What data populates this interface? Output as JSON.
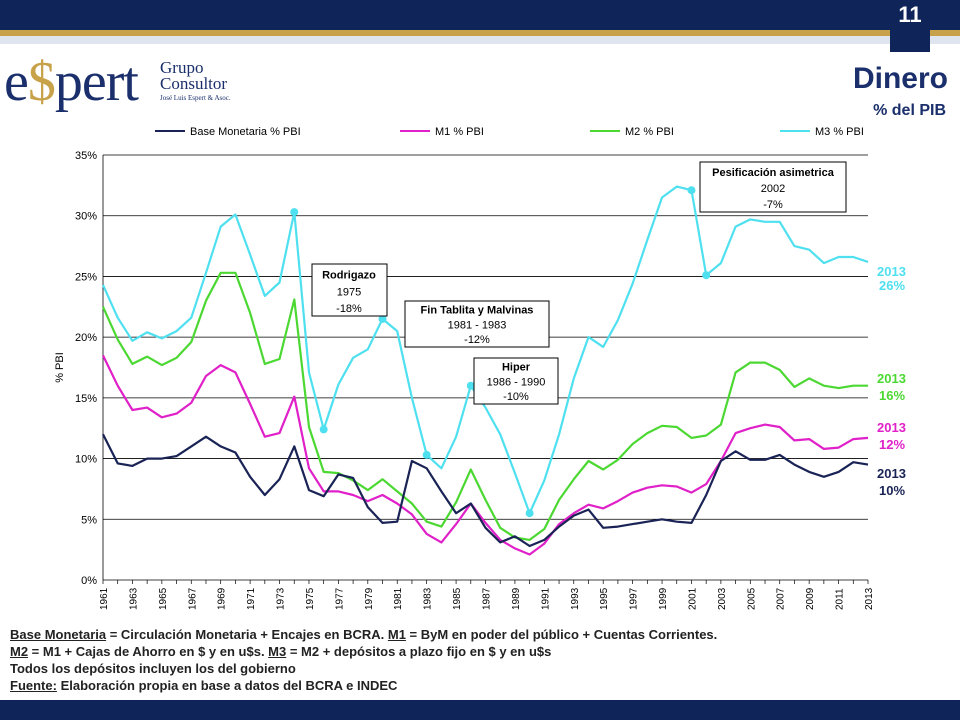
{
  "header": {
    "page_number": "11",
    "title": "Dinero",
    "subtitle": "% del PIB"
  },
  "logo": {
    "name": "espert",
    "grupo": "Grupo",
    "consultor": "Consultor",
    "tagline": "José Luis Espert & Asoc."
  },
  "colors": {
    "base": "#1a2355",
    "m1": "#e020c8",
    "m2": "#4cd832",
    "m3": "#4fe0f0",
    "navy": "#0f2458",
    "gold": "#c8a24a"
  },
  "chart_data": {
    "type": "line",
    "ylabel": "% PBI",
    "ylim": [
      0,
      35
    ],
    "yticks": [
      "0%",
      "5%",
      "10%",
      "15%",
      "20%",
      "25%",
      "30%",
      "35%"
    ],
    "x": [
      1961,
      1962,
      1963,
      1964,
      1965,
      1966,
      1967,
      1968,
      1969,
      1970,
      1971,
      1972,
      1973,
      1974,
      1975,
      1976,
      1977,
      1978,
      1979,
      1980,
      1981,
      1982,
      1983,
      1984,
      1985,
      1986,
      1987,
      1988,
      1989,
      1990,
      1991,
      1992,
      1993,
      1994,
      1995,
      1996,
      1997,
      1998,
      1999,
      2000,
      2001,
      2002,
      2003,
      2004,
      2005,
      2006,
      2007,
      2008,
      2009,
      2010,
      2011,
      2012,
      2013
    ],
    "xticks": [
      "1961",
      "1963",
      "1965",
      "1967",
      "1969",
      "1971",
      "1973",
      "1975",
      "1977",
      "1979",
      "1981",
      "1983",
      "1985",
      "1987",
      "1989",
      "1991",
      "1993",
      "1995",
      "1997",
      "1999",
      "2001",
      "2003",
      "2005",
      "2007",
      "2009",
      "2011",
      "2013"
    ],
    "series": [
      {
        "key": "base",
        "name": "Base Monetaria % PBI",
        "end_year": "2013",
        "end_value": "10%",
        "values": [
          12.0,
          9.6,
          9.4,
          10.0,
          10.0,
          10.2,
          11.0,
          11.8,
          11.0,
          10.5,
          8.5,
          7.0,
          8.3,
          11.0,
          7.4,
          6.9,
          8.7,
          8.4,
          6.0,
          4.7,
          4.8,
          9.8,
          9.2,
          7.3,
          5.5,
          6.3,
          4.3,
          3.1,
          3.6,
          2.8,
          3.3,
          4.4,
          5.3,
          5.8,
          4.3,
          4.4,
          4.6,
          4.8,
          5.0,
          4.8,
          4.7,
          7.0,
          9.8,
          10.6,
          9.9,
          9.9,
          10.3,
          9.5,
          8.9,
          8.5,
          8.9,
          9.7,
          9.5
        ]
      },
      {
        "key": "m1",
        "name": "M1 % PBI",
        "end_year": "2013",
        "end_value": "12%",
        "values": [
          18.5,
          16.0,
          14.0,
          14.2,
          13.4,
          13.7,
          14.6,
          16.8,
          17.7,
          17.1,
          14.5,
          11.8,
          12.1,
          15.1,
          9.2,
          7.3,
          7.3,
          7.0,
          6.5,
          7.0,
          6.3,
          5.4,
          3.8,
          3.1,
          4.6,
          6.3,
          4.7,
          3.3,
          2.6,
          2.1,
          3.0,
          4.6,
          5.5,
          6.2,
          5.9,
          6.5,
          7.2,
          7.6,
          7.8,
          7.7,
          7.2,
          7.9,
          9.8,
          12.1,
          12.5,
          12.8,
          12.6,
          11.5,
          11.6,
          10.8,
          10.9,
          11.6,
          11.7
        ]
      },
      {
        "key": "m2",
        "name": "M2 % PBI",
        "end_year": "2013",
        "end_value": "16%",
        "values": [
          22.5,
          19.8,
          17.8,
          18.4,
          17.7,
          18.3,
          19.6,
          23.0,
          25.3,
          25.3,
          22.0,
          17.8,
          18.2,
          23.1,
          12.6,
          8.9,
          8.8,
          8.2,
          7.4,
          8.3,
          7.3,
          6.3,
          4.8,
          4.4,
          6.4,
          9.1,
          6.6,
          4.3,
          3.5,
          3.3,
          4.2,
          6.6,
          8.3,
          9.8,
          9.1,
          9.9,
          11.2,
          12.1,
          12.7,
          12.6,
          11.7,
          11.9,
          12.8,
          17.1,
          17.9,
          17.9,
          17.3,
          15.9,
          16.6,
          16.0,
          15.8,
          16.0,
          16.0
        ]
      },
      {
        "key": "m3",
        "name": "M3 % PBI",
        "end_year": "2013",
        "end_value": "26%",
        "values": [
          24.3,
          21.6,
          19.7,
          20.4,
          19.9,
          20.5,
          21.6,
          25.3,
          29.1,
          30.1,
          26.8,
          23.4,
          24.5,
          30.3,
          17.1,
          12.4,
          16.1,
          18.3,
          19.0,
          21.5,
          20.5,
          15.0,
          10.3,
          9.2,
          11.8,
          16.0,
          14.2,
          12.0,
          8.8,
          5.5,
          8.2,
          12.0,
          16.6,
          20.0,
          19.2,
          21.4,
          24.4,
          28.0,
          31.5,
          32.4,
          32.1,
          25.1,
          26.1,
          29.1,
          29.7,
          29.5,
          29.5,
          27.5,
          27.2,
          26.1,
          26.6,
          26.6,
          26.2
        ]
      }
    ],
    "markers": {
      "years": [
        1974,
        1976,
        1980,
        1983,
        1986,
        1990,
        2001,
        2002
      ]
    },
    "annotations": [
      {
        "title": "Rodrigazo",
        "line2": "1975",
        "line3": "-18%"
      },
      {
        "title": "Fin Tablita y Malvinas",
        "line2": "1981 - 1983",
        "line3": "-12%"
      },
      {
        "title": "Hiper",
        "line2": "1986 - 1990",
        "line3": "-10%"
      },
      {
        "title": "Pesificación asimetrica",
        "line2": "2002",
        "line3": "-7%"
      }
    ]
  },
  "notes": {
    "l1_a": "Base Monetaria",
    "l1_b": " = Circulación Monetaria + Encajes en BCRA. ",
    "l1_c": "M1",
    "l1_d": " = ByM en poder del público + Cuentas Corrientes.",
    "l2_a": "M2",
    "l2_b": " = M1 + Cajas de Ahorro en $ y en u$s. ",
    "l2_c": "M3",
    "l2_d": " = M2 + depósitos a plazo fijo en $ y en u$s",
    "l3": "Todos los depósitos incluyen los del gobierno",
    "l4_a": "Fuente:",
    "l4_b": " Elaboración propia en base a datos del BCRA e INDEC"
  }
}
